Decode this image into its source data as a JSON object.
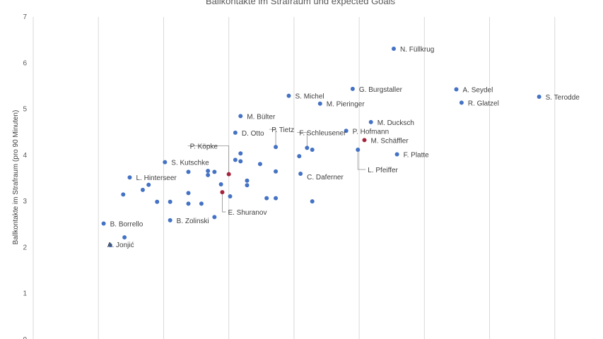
{
  "chart_data": {
    "type": "scatter",
    "title": "Ballkontakte im Strafraum und expected Goals",
    "ylabel": "Ballkontakte im Strafraum (pro 90 Minuten)",
    "xlabel": "",
    "ylim": [
      0,
      7
    ],
    "xlim": [
      0,
      0.9
    ],
    "y_ticks": [
      "0",
      "1",
      "2",
      "3",
      "4",
      "5",
      "6",
      "7"
    ],
    "grid": "vertical",
    "colors": {
      "default": "#4472c4",
      "highlight": "#a5243d",
      "grid": "#d9d9d9"
    },
    "points": [
      {
        "x": 0.553,
        "y": 6.31,
        "label": "N. Füllkrug"
      },
      {
        "x": 0.49,
        "y": 5.44,
        "label": "G. Burgstaller"
      },
      {
        "x": 0.649,
        "y": 5.43,
        "label": "A. Seydel"
      },
      {
        "x": 0.776,
        "y": 5.27,
        "label": "S. Terodde"
      },
      {
        "x": 0.657,
        "y": 5.14,
        "label": "R. Glatzel"
      },
      {
        "x": 0.392,
        "y": 5.29,
        "label": "S. Michel"
      },
      {
        "x": 0.44,
        "y": 5.12,
        "label": "M. Pieringer"
      },
      {
        "x": 0.318,
        "y": 4.85,
        "label": "M. Bülter"
      },
      {
        "x": 0.518,
        "y": 4.72,
        "label": "M. Ducksch"
      },
      {
        "x": 0.31,
        "y": 4.49,
        "label": "D. Otto"
      },
      {
        "x": 0.48,
        "y": 4.53,
        "label": "P. Hofmann"
      },
      {
        "x": 0.372,
        "y": 4.18,
        "label": "P. Tietz"
      },
      {
        "x": 0.42,
        "y": 4.16,
        "label": "F. Schleusener"
      },
      {
        "x": 0.508,
        "y": 4.33,
        "label": "M. Schäffler",
        "highlight": true
      },
      {
        "x": 0.558,
        "y": 4.02,
        "label": "F. Platte"
      },
      {
        "x": 0.498,
        "y": 4.12,
        "label": "L. Pfeiffer"
      },
      {
        "x": 0.3,
        "y": 3.59,
        "label": "P. Köpke",
        "highlight": true
      },
      {
        "x": 0.202,
        "y": 3.85,
        "label": "S. Kutschke"
      },
      {
        "x": 0.41,
        "y": 3.6,
        "label": "C. Daferner"
      },
      {
        "x": 0.148,
        "y": 3.52,
        "label": "L. Hinterseer"
      },
      {
        "x": 0.29,
        "y": 3.2,
        "label": "E. Shuranov",
        "highlight": true
      },
      {
        "x": 0.21,
        "y": 2.59,
        "label": "B. Zolinski"
      },
      {
        "x": 0.108,
        "y": 2.52,
        "label": "B. Borrello"
      },
      {
        "x": 0.118,
        "y": 2.05,
        "label": "A. Jonjić"
      },
      {
        "x": 0.14,
        "y": 2.22
      },
      {
        "x": 0.138,
        "y": 3.15
      },
      {
        "x": 0.168,
        "y": 3.25
      },
      {
        "x": 0.177,
        "y": 3.36
      },
      {
        "x": 0.19,
        "y": 2.99
      },
      {
        "x": 0.21,
        "y": 2.99
      },
      {
        "x": 0.238,
        "y": 3.64
      },
      {
        "x": 0.238,
        "y": 3.18
      },
      {
        "x": 0.238,
        "y": 2.95
      },
      {
        "x": 0.258,
        "y": 2.95
      },
      {
        "x": 0.268,
        "y": 3.57
      },
      {
        "x": 0.268,
        "y": 3.66
      },
      {
        "x": 0.278,
        "y": 3.64
      },
      {
        "x": 0.278,
        "y": 2.66
      },
      {
        "x": 0.288,
        "y": 3.37
      },
      {
        "x": 0.302,
        "y": 3.11
      },
      {
        "x": 0.31,
        "y": 3.9
      },
      {
        "x": 0.318,
        "y": 4.04
      },
      {
        "x": 0.318,
        "y": 3.87
      },
      {
        "x": 0.328,
        "y": 3.45
      },
      {
        "x": 0.328,
        "y": 3.35
      },
      {
        "x": 0.348,
        "y": 3.81
      },
      {
        "x": 0.358,
        "y": 3.07
      },
      {
        "x": 0.372,
        "y": 3.65
      },
      {
        "x": 0.372,
        "y": 3.07
      },
      {
        "x": 0.408,
        "y": 3.98
      },
      {
        "x": 0.428,
        "y": 4.12
      },
      {
        "x": 0.428,
        "y": 3.0
      }
    ]
  }
}
